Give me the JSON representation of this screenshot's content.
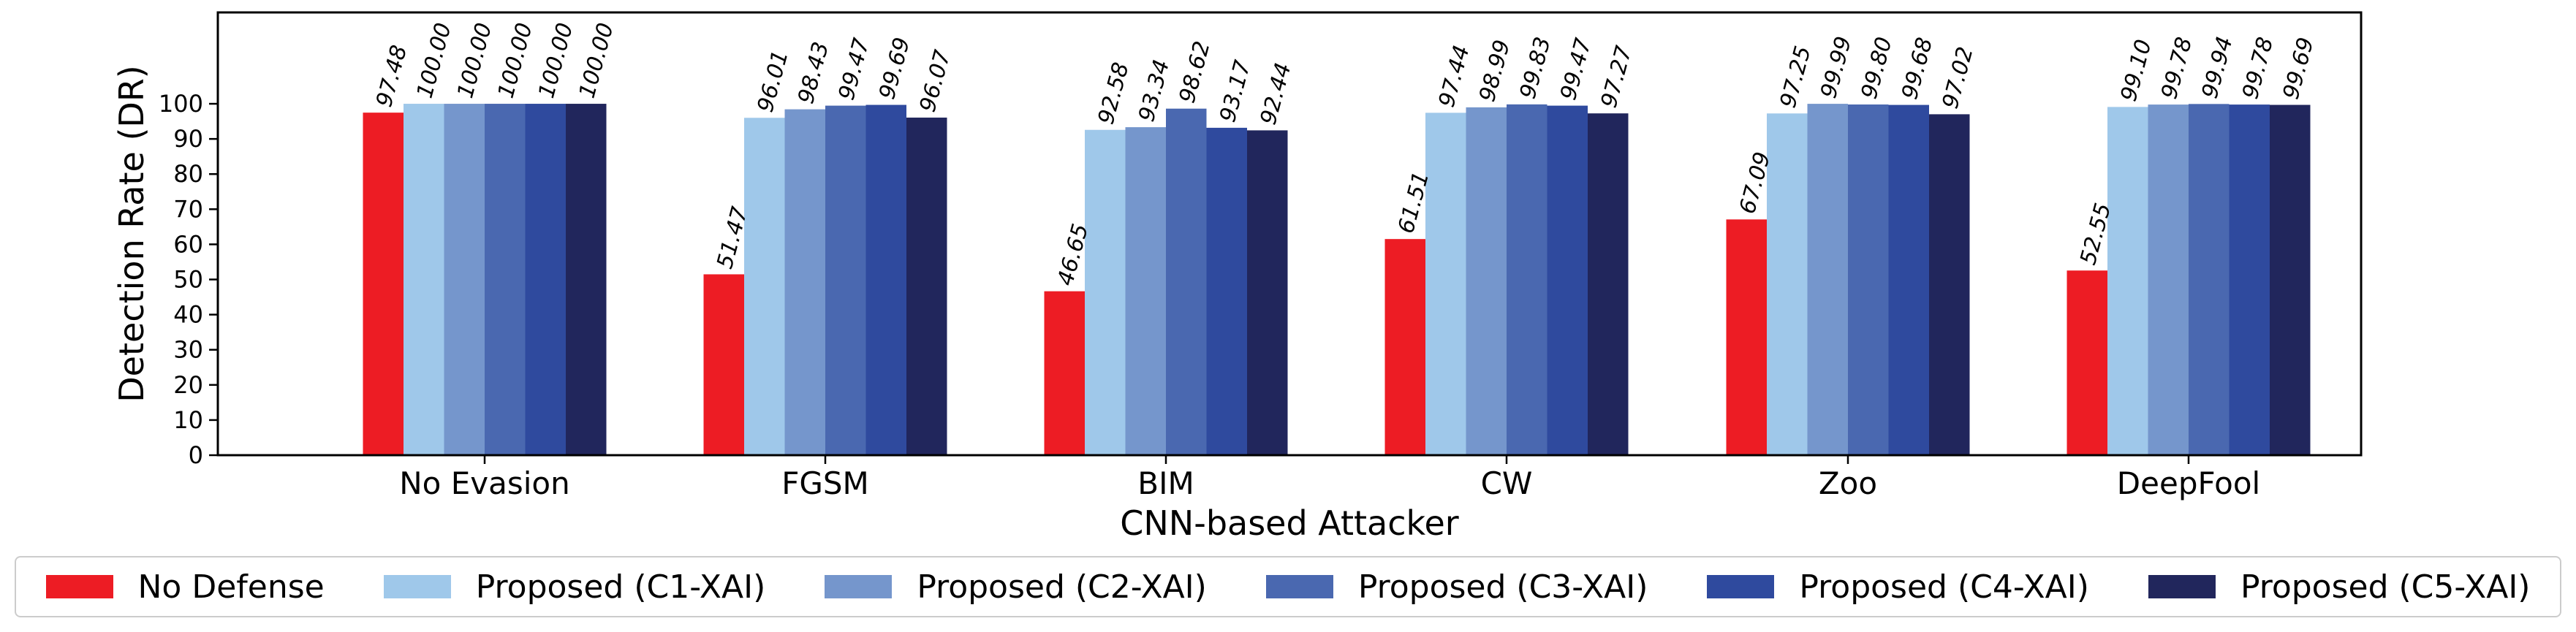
{
  "chart_data": {
    "type": "bar",
    "title": "",
    "xlabel": "CNN-based Attacker",
    "ylabel": "Detection Rate (DR)",
    "ylim": [
      0,
      126
    ],
    "yticks": [
      0,
      10,
      20,
      30,
      40,
      50,
      60,
      70,
      80,
      90,
      100
    ],
    "categories": [
      "No Evasion",
      "FGSM",
      "BIM",
      "CW",
      "Zoo",
      "DeepFool"
    ],
    "series": [
      {
        "name": "No Defense",
        "color": "#ed1c24",
        "values": [
          97.48,
          51.47,
          46.65,
          61.51,
          67.09,
          52.55
        ],
        "labels": [
          "97.48",
          "51.47",
          "46.65",
          "61.51",
          "67.09",
          "52.55"
        ]
      },
      {
        "name": "Proposed (C1-XAI)",
        "color": "#9fc8ea",
        "values": [
          100.0,
          96.01,
          92.58,
          97.44,
          97.25,
          99.1
        ],
        "labels": [
          "100.00",
          "96.01",
          "92.58",
          "97.44",
          "97.25",
          "99.10"
        ]
      },
      {
        "name": "Proposed (C2-XAI)",
        "color": "#7596cc",
        "values": [
          100.0,
          98.43,
          93.34,
          98.99,
          99.99,
          99.78
        ],
        "labels": [
          "100.00",
          "98.43",
          "93.34",
          "98.99",
          "99.99",
          "99.78"
        ]
      },
      {
        "name": "Proposed (C3-XAI)",
        "color": "#4a68b0",
        "values": [
          100.0,
          99.47,
          98.62,
          99.83,
          99.8,
          99.94
        ],
        "labels": [
          "100.00",
          "99.47",
          "98.62",
          "99.83",
          "99.80",
          "99.94"
        ]
      },
      {
        "name": "Proposed (C4-XAI)",
        "color": "#2f4a9e",
        "values": [
          100.0,
          99.69,
          93.17,
          99.47,
          99.68,
          99.78
        ],
        "labels": [
          "100.00",
          "99.69",
          "93.17",
          "99.47",
          "99.68",
          "99.78"
        ]
      },
      {
        "name": "Proposed (C5-XAI)",
        "color": "#21265c",
        "values": [
          100.0,
          96.07,
          92.44,
          97.27,
          97.02,
          99.69
        ],
        "labels": [
          "100.00",
          "96.07",
          "92.44",
          "97.27",
          "97.02",
          "99.69"
        ]
      }
    ],
    "legend_position": "bottom",
    "grid": false
  }
}
